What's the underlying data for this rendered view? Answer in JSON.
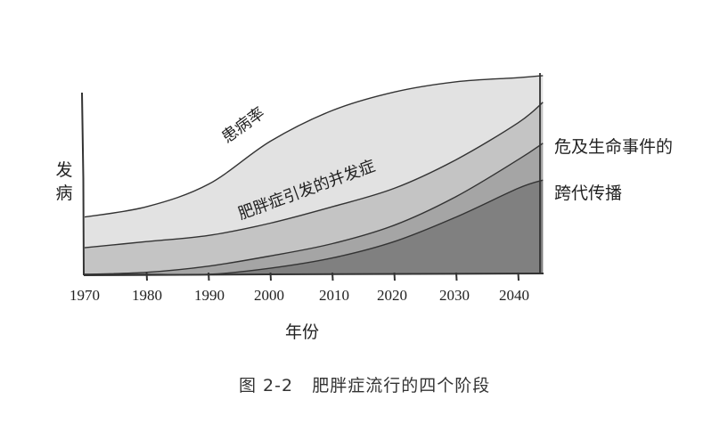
{
  "chart_data": {
    "type": "area",
    "stacked": false,
    "title": "",
    "caption": "图 2-2   肥胖症流行的四个阶段",
    "xlabel": "年份",
    "ylabel": "发病",
    "x": [
      1970,
      1980,
      1990,
      2000,
      2010,
      2020,
      2030,
      2040,
      2044
    ],
    "xticks": [
      "1970",
      "1980",
      "1990",
      "2000",
      "2010",
      "2020",
      "2030",
      "2040"
    ],
    "ylim": [
      0,
      100
    ],
    "grid": false,
    "legend_position": "inline / right",
    "colors": {
      "layer1": "#e2e2e2",
      "layer2": "#c4c4c4",
      "layer3": "#a5a5a5",
      "layer4": "#808080",
      "line": "#333333"
    },
    "series": [
      {
        "name": "患病率",
        "values": [
          28,
          33,
          44,
          65,
          80,
          89,
          94,
          96,
          97
        ]
      },
      {
        "name": "肥胖症引发的并发症",
        "values": [
          13,
          16,
          19,
          25,
          33,
          42,
          56,
          74,
          84
        ]
      },
      {
        "name": "危及生命事件的",
        "values": [
          0,
          1,
          4,
          9,
          15,
          24,
          38,
          56,
          64
        ]
      },
      {
        "name": "跨代传播",
        "values": [
          0,
          0,
          0,
          3,
          8,
          16,
          28,
          42,
          46
        ]
      }
    ],
    "annotations": [
      {
        "text": "患病率",
        "position": "along top curve near 1995"
      },
      {
        "text": "肥胖症引发的并发症",
        "position": "along second curve 1995-2020"
      },
      {
        "text": "危及生命事件的",
        "position": "right edge, third layer"
      },
      {
        "text": "跨代传播",
        "position": "right edge, fourth layer"
      }
    ]
  },
  "axis": {
    "ylabel_chars": [
      "发",
      "病"
    ],
    "xlabel": "年份",
    "xticks": [
      "1970",
      "1980",
      "1990",
      "2000",
      "2010",
      "2020",
      "2030",
      "2040"
    ]
  },
  "labels": {
    "prevalence": "患病率",
    "complications": "肥胖症引发的并发症",
    "life_threatening": "危及生命事件的",
    "intergenerational": "跨代传播"
  },
  "caption": "图 2-2   肥胖症流行的四个阶段"
}
